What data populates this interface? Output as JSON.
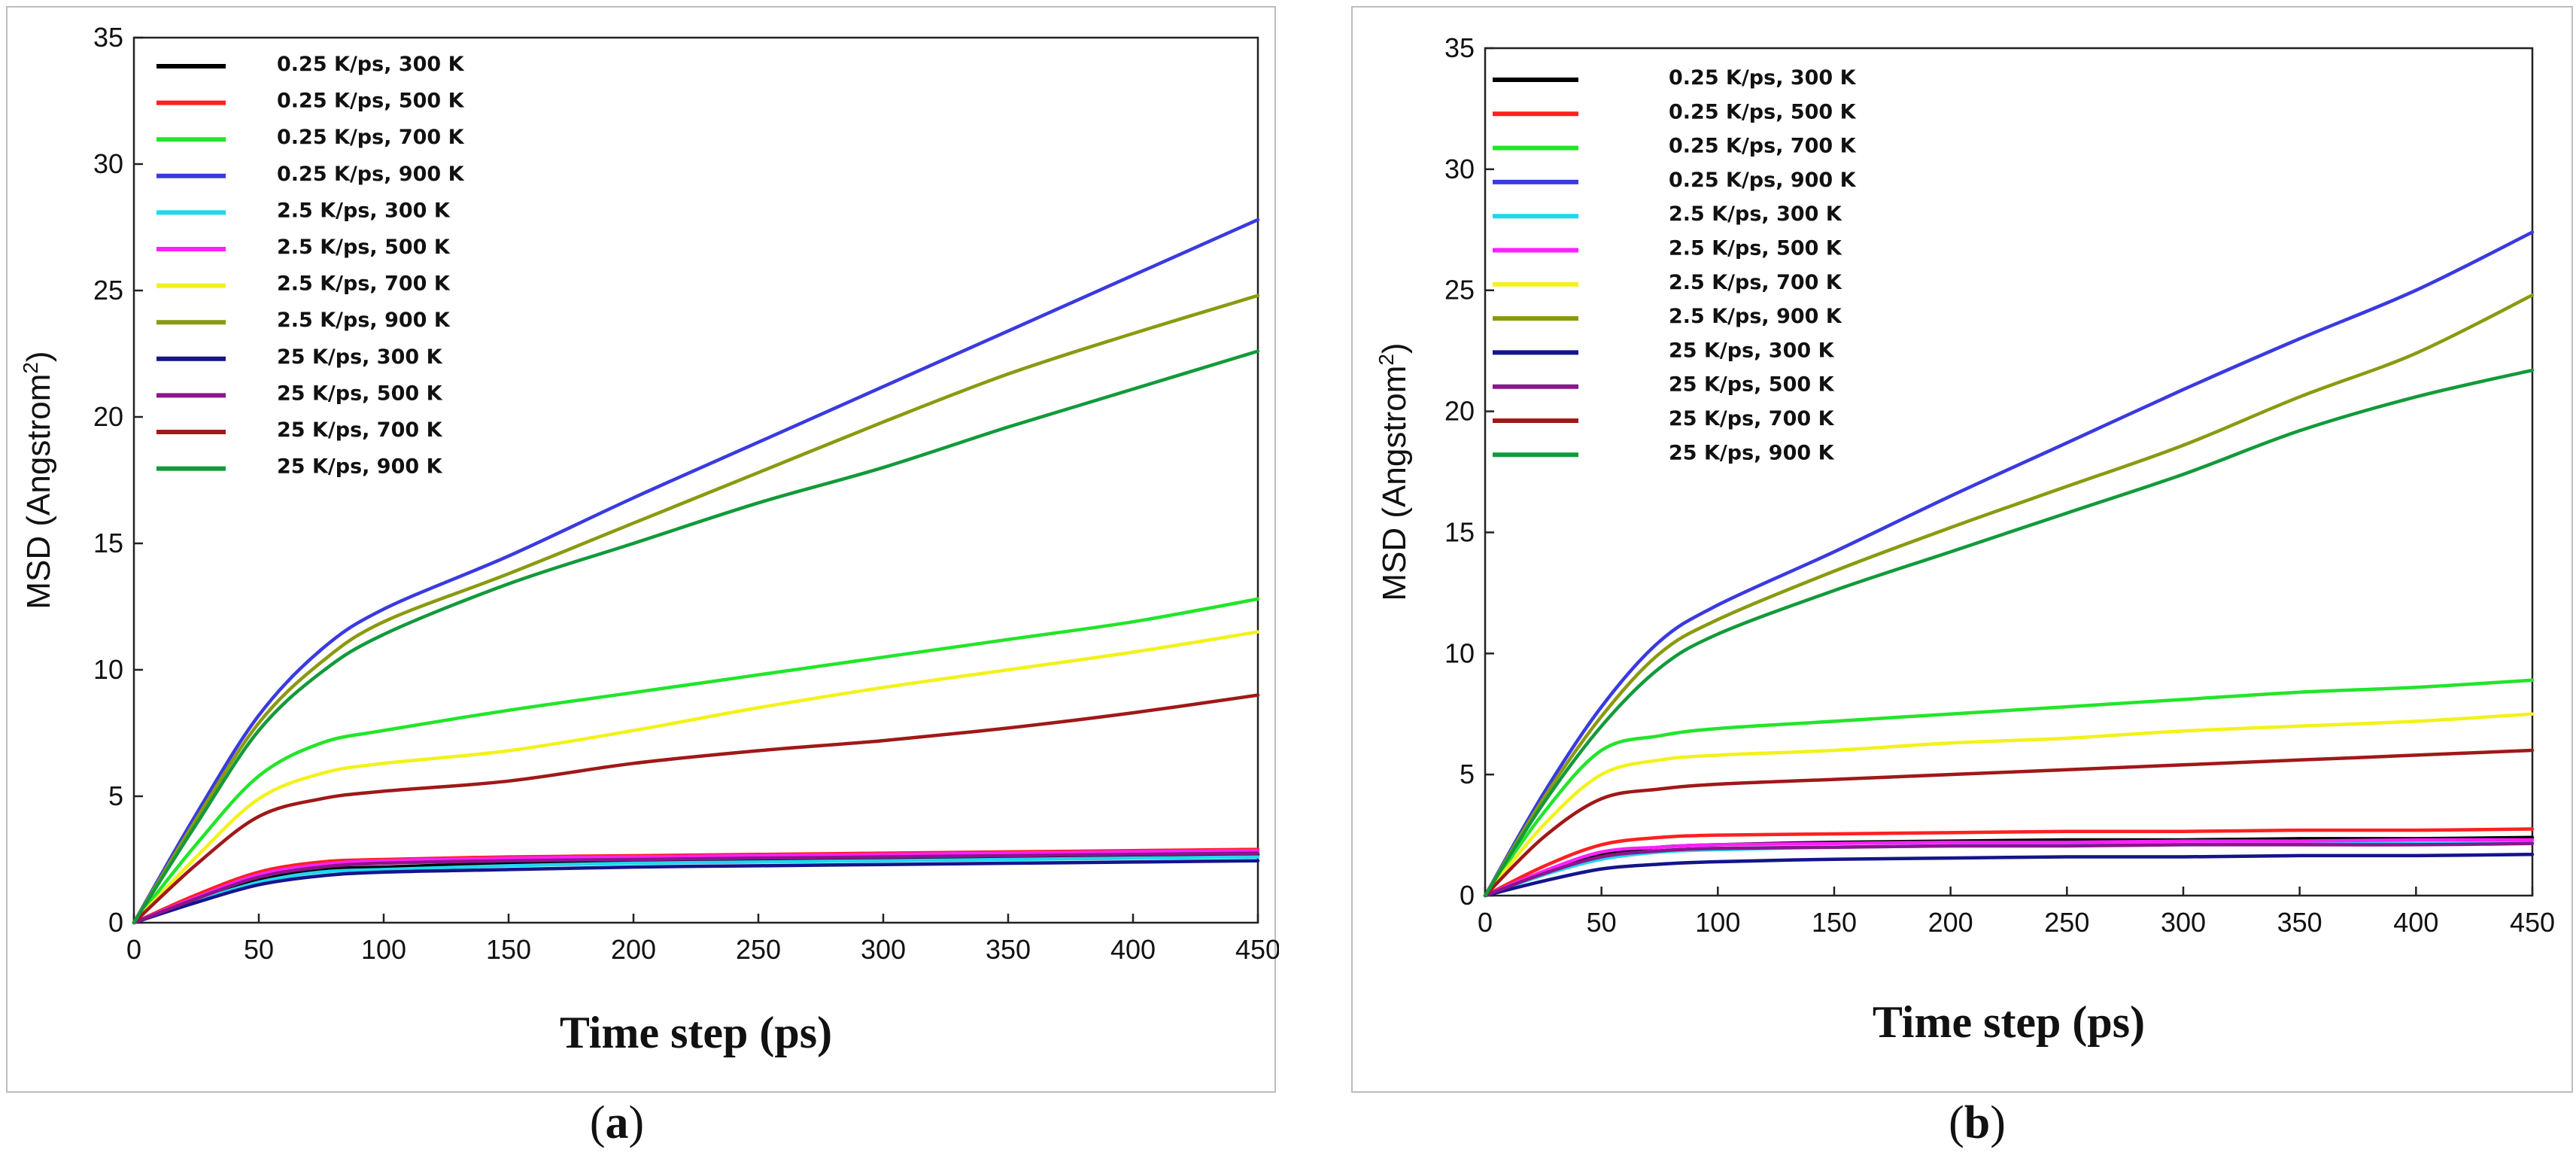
{
  "chart_data": [
    {
      "id": "a",
      "type": "line",
      "caption_letter": "a",
      "xlabel": "Time step (ps)",
      "ylabel_main": "MSD (Angstrom",
      "ylabel_sup": "2",
      "ylabel_close": ")",
      "xlim": [
        0,
        450
      ],
      "ylim": [
        0,
        35
      ],
      "xticks": [
        0,
        50,
        100,
        150,
        200,
        250,
        300,
        350,
        400,
        450
      ],
      "yticks": [
        0,
        5,
        10,
        15,
        20,
        25,
        30,
        35
      ],
      "legend_position": "top-left",
      "x": [
        0,
        25,
        50,
        75,
        100,
        150,
        200,
        250,
        300,
        350,
        400,
        450
      ],
      "series": [
        {
          "name": "0.25 K/ps, 300 K",
          "color": "#000000",
          "values": [
            0,
            0.9,
            1.7,
            2.1,
            2.2,
            2.35,
            2.45,
            2.5,
            2.55,
            2.6,
            2.65,
            2.7
          ]
        },
        {
          "name": "0.25 K/ps, 500 K",
          "color": "#ff2020",
          "values": [
            0,
            1.1,
            2.0,
            2.4,
            2.5,
            2.6,
            2.65,
            2.7,
            2.75,
            2.8,
            2.85,
            2.9
          ]
        },
        {
          "name": "0.25 K/ps, 700 K",
          "color": "#22e52a",
          "values": [
            0,
            3.1,
            5.8,
            7.1,
            7.6,
            8.4,
            9.1,
            9.8,
            10.5,
            11.2,
            11.9,
            12.8
          ]
        },
        {
          "name": "0.25 K/ps, 900 K",
          "color": "#3a3ae0",
          "values": [
            0,
            4.3,
            8.2,
            10.8,
            12.4,
            14.5,
            16.8,
            19.0,
            21.2,
            23.4,
            25.6,
            27.8
          ]
        },
        {
          "name": "2.5 K/ps, 300 K",
          "color": "#1ed8ee",
          "values": [
            0,
            0.85,
            1.6,
            2.0,
            2.1,
            2.25,
            2.35,
            2.4,
            2.45,
            2.5,
            2.55,
            2.6
          ]
        },
        {
          "name": "2.5 K/ps, 500 K",
          "color": "#ff20ff",
          "values": [
            0,
            1.0,
            1.9,
            2.3,
            2.45,
            2.55,
            2.6,
            2.65,
            2.7,
            2.75,
            2.8,
            2.85
          ]
        },
        {
          "name": "2.5 K/ps, 700 K",
          "color": "#f2f21a",
          "values": [
            0,
            2.6,
            4.9,
            5.9,
            6.3,
            6.8,
            7.6,
            8.5,
            9.3,
            10.0,
            10.7,
            11.5
          ]
        },
        {
          "name": "2.5 K/ps, 900 K",
          "color": "#8a9a10",
          "values": [
            0,
            4.1,
            7.9,
            10.3,
            11.9,
            13.8,
            15.8,
            17.8,
            19.8,
            21.7,
            23.3,
            24.8
          ]
        },
        {
          "name": "25 K/ps, 300 K",
          "color": "#14148c",
          "values": [
            0,
            0.8,
            1.5,
            1.85,
            2.0,
            2.1,
            2.2,
            2.25,
            2.3,
            2.35,
            2.4,
            2.45
          ]
        },
        {
          "name": "25 K/ps, 500 K",
          "color": "#8c148c",
          "values": [
            0,
            0.95,
            1.8,
            2.2,
            2.35,
            2.45,
            2.5,
            2.55,
            2.6,
            2.65,
            2.7,
            2.75
          ]
        },
        {
          "name": "25 K/ps, 700 K",
          "color": "#a01818",
          "values": [
            0,
            2.3,
            4.2,
            4.9,
            5.2,
            5.6,
            6.3,
            6.8,
            7.2,
            7.7,
            8.3,
            9.0
          ]
        },
        {
          "name": "25 K/ps, 900 K",
          "color": "#129a3a",
          "values": [
            0,
            3.9,
            7.6,
            9.9,
            11.4,
            13.4,
            15.0,
            16.6,
            18.0,
            19.6,
            21.1,
            22.6
          ]
        }
      ]
    },
    {
      "id": "b",
      "type": "line",
      "caption_letter": "b",
      "xlabel": "Time step (ps)",
      "ylabel_main": "MSD (Angstrom",
      "ylabel_sup": "2",
      "ylabel_close": ")",
      "xlim": [
        0,
        450
      ],
      "ylim": [
        0,
        35
      ],
      "xticks": [
        0,
        50,
        100,
        150,
        200,
        250,
        300,
        350,
        400,
        450
      ],
      "yticks": [
        0,
        5,
        10,
        15,
        20,
        25,
        30,
        35
      ],
      "legend_position": "top-left",
      "x": [
        0,
        25,
        50,
        75,
        100,
        150,
        200,
        250,
        300,
        350,
        400,
        450
      ],
      "series": [
        {
          "name": "0.25 K/ps, 300 K",
          "color": "#000000",
          "values": [
            0,
            0.9,
            1.7,
            2.0,
            2.1,
            2.2,
            2.25,
            2.3,
            2.3,
            2.35,
            2.35,
            2.4
          ]
        },
        {
          "name": "0.25 K/ps, 500 K",
          "color": "#ff2020",
          "values": [
            0,
            1.2,
            2.1,
            2.4,
            2.5,
            2.55,
            2.6,
            2.65,
            2.65,
            2.7,
            2.7,
            2.75
          ]
        },
        {
          "name": "0.25 K/ps, 700 K",
          "color": "#22e52a",
          "values": [
            0,
            3.4,
            6.0,
            6.6,
            6.9,
            7.2,
            7.5,
            7.8,
            8.1,
            8.4,
            8.6,
            8.9
          ]
        },
        {
          "name": "0.25 K/ps, 900 K",
          "color": "#3a3ae0",
          "values": [
            0,
            4.2,
            7.8,
            10.5,
            12.0,
            14.2,
            16.5,
            18.7,
            20.9,
            23.0,
            25.0,
            27.4
          ]
        },
        {
          "name": "2.5 K/ps, 300 K",
          "color": "#1ed8ee",
          "values": [
            0,
            0.85,
            1.5,
            1.8,
            1.9,
            2.0,
            2.05,
            2.1,
            2.1,
            2.15,
            2.15,
            2.2
          ]
        },
        {
          "name": "2.5 K/ps, 500 K",
          "color": "#ff20ff",
          "values": [
            0,
            1.0,
            1.8,
            2.0,
            2.1,
            2.15,
            2.2,
            2.2,
            2.25,
            2.25,
            2.3,
            2.3
          ]
        },
        {
          "name": "2.5 K/ps, 700 K",
          "color": "#f2f21a",
          "values": [
            0,
            2.9,
            5.0,
            5.6,
            5.8,
            6.0,
            6.3,
            6.5,
            6.8,
            7.0,
            7.2,
            7.5
          ]
        },
        {
          "name": "2.5 K/ps, 900 K",
          "color": "#8a9a10",
          "values": [
            0,
            4.0,
            7.4,
            10.0,
            11.4,
            13.4,
            15.2,
            16.9,
            18.6,
            20.6,
            22.4,
            24.8
          ]
        },
        {
          "name": "25 K/ps, 300 K",
          "color": "#14148c",
          "values": [
            0,
            0.6,
            1.1,
            1.3,
            1.4,
            1.5,
            1.55,
            1.6,
            1.6,
            1.65,
            1.65,
            1.7
          ]
        },
        {
          "name": "25 K/ps, 500 K",
          "color": "#8c148c",
          "values": [
            0,
            0.9,
            1.6,
            1.85,
            1.95,
            2.0,
            2.05,
            2.05,
            2.1,
            2.1,
            2.1,
            2.15
          ]
        },
        {
          "name": "25 K/ps, 700 K",
          "color": "#a01818",
          "values": [
            0,
            2.4,
            4.0,
            4.4,
            4.6,
            4.8,
            5.0,
            5.2,
            5.4,
            5.6,
            5.8,
            6.0
          ]
        },
        {
          "name": "25 K/ps, 900 K",
          "color": "#129a3a",
          "values": [
            0,
            3.8,
            7.0,
            9.4,
            10.8,
            12.6,
            14.2,
            15.8,
            17.4,
            19.2,
            20.6,
            21.7
          ]
        }
      ]
    }
  ]
}
